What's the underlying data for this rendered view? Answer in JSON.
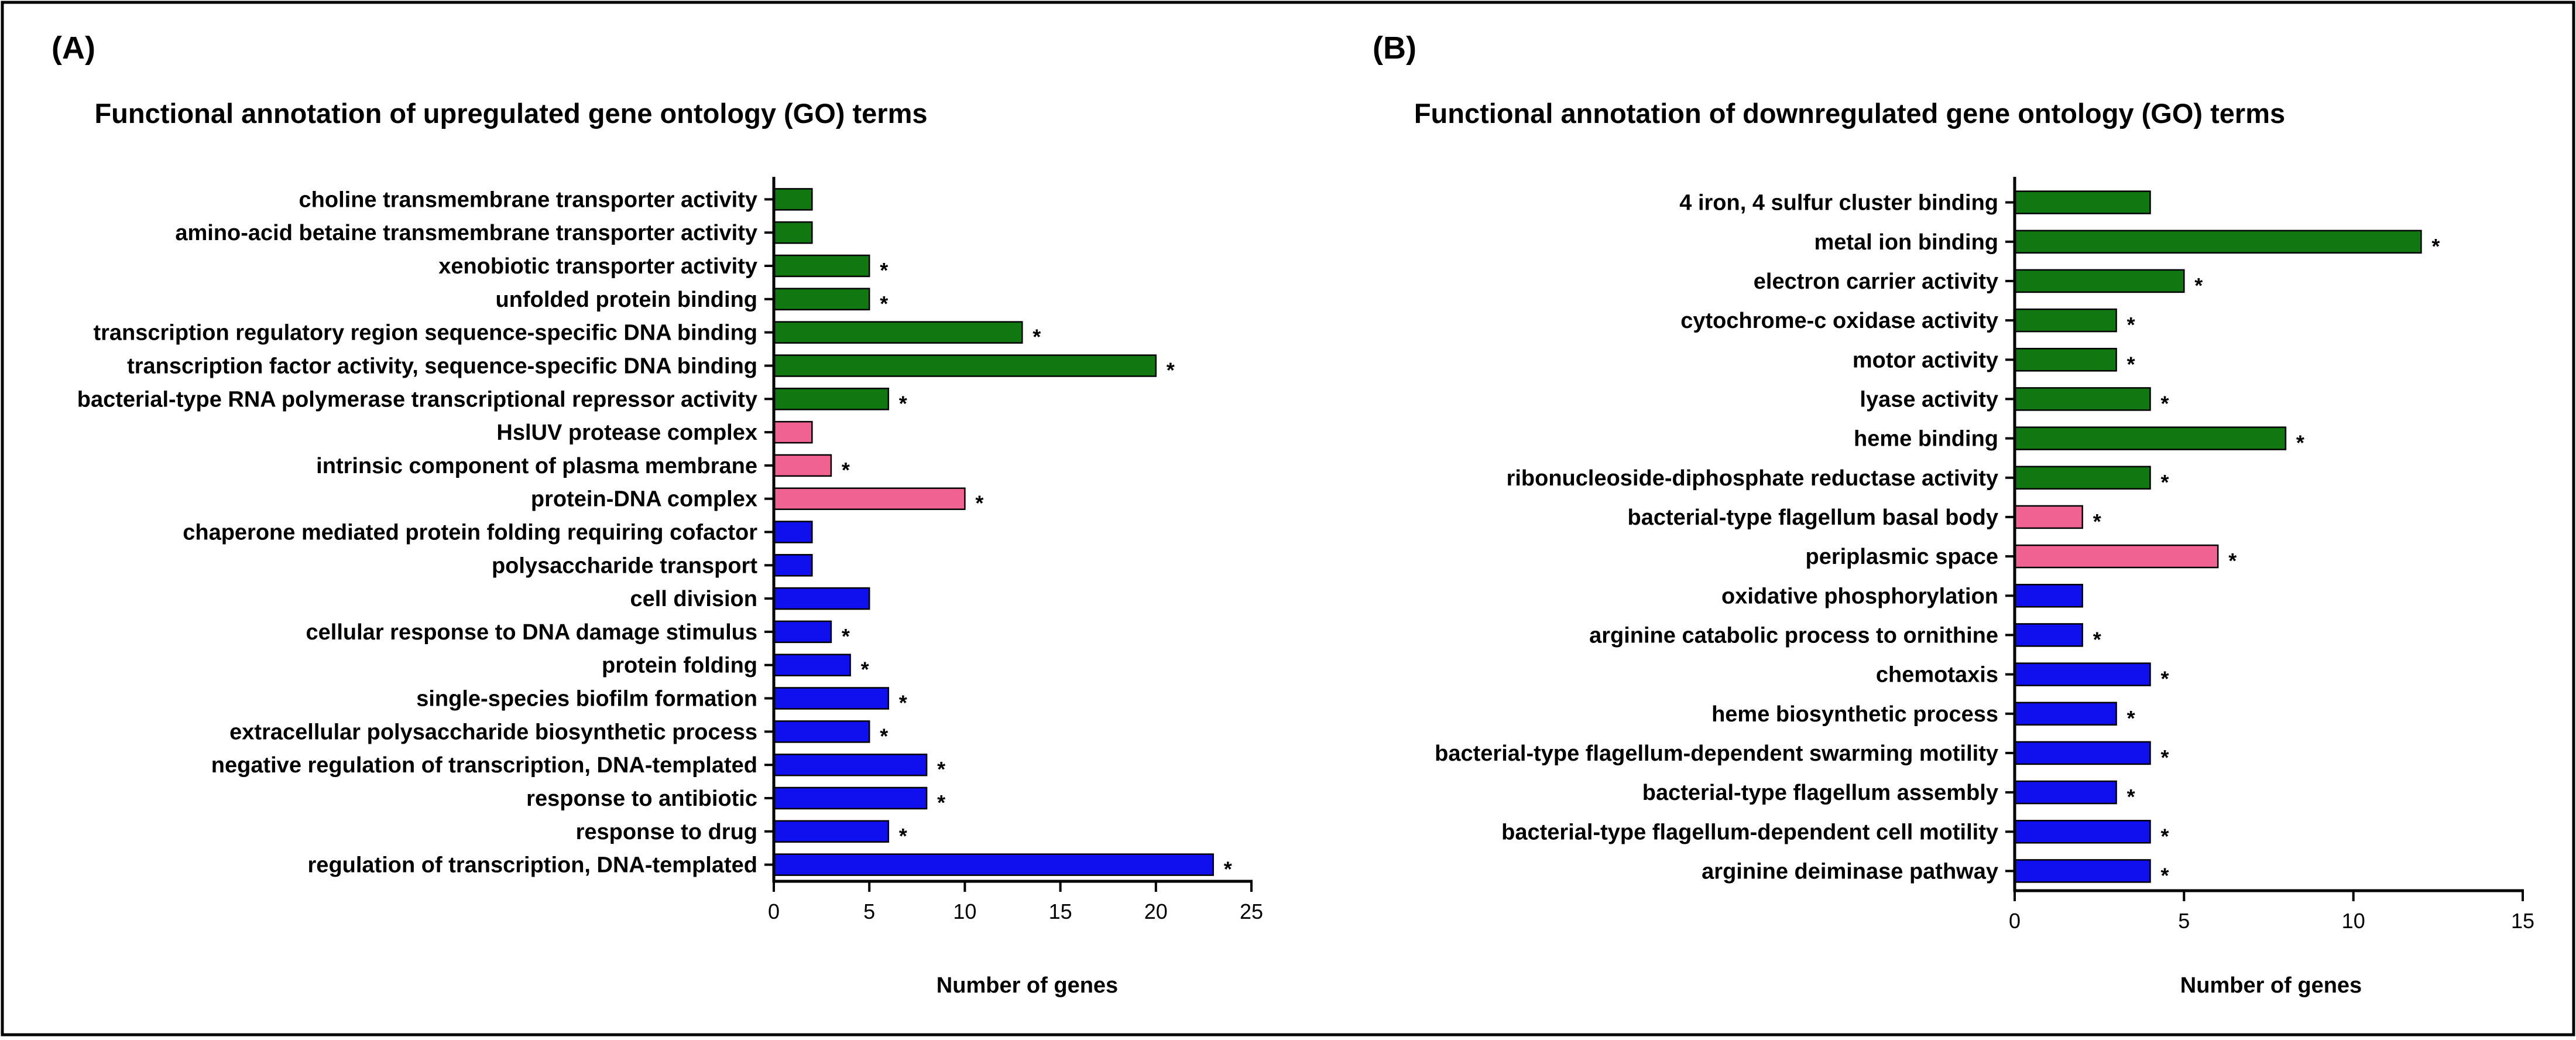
{
  "colors": {
    "function": "#117711",
    "component": "#f06292",
    "process": "#1010ee",
    "axis": "#000000",
    "border": "#000000"
  },
  "chart_data": [
    {
      "type": "bar",
      "orientation": "horizontal",
      "panel": "(A)",
      "title": "Functional annotation of upregulated gene ontology (GO) terms",
      "xlabel": "Number of genes",
      "ylabel": "",
      "xlim": [
        0,
        25
      ],
      "xticks": [
        "0",
        "5",
        "10",
        "15",
        "20",
        "25"
      ],
      "significance_marker": "*",
      "bars": [
        {
          "label": "choline transmembrane transporter activity",
          "value": 2,
          "category": "function",
          "significant": false
        },
        {
          "label": "amino-acid betaine transmembrane transporter activity",
          "value": 2,
          "category": "function",
          "significant": false
        },
        {
          "label": "xenobiotic transporter activity",
          "value": 5,
          "category": "function",
          "significant": true
        },
        {
          "label": "unfolded protein binding",
          "value": 5,
          "category": "function",
          "significant": true
        },
        {
          "label": "transcription regulatory region sequence-specific DNA binding",
          "value": 13,
          "category": "function",
          "significant": true
        },
        {
          "label": "transcription factor activity, sequence-specific DNA binding",
          "value": 20,
          "category": "function",
          "significant": true
        },
        {
          "label": "bacterial-type RNA polymerase transcriptional repressor activity",
          "value": 6,
          "category": "function",
          "significant": true
        },
        {
          "label": "HslUV protease complex",
          "value": 2,
          "category": "component",
          "significant": false
        },
        {
          "label": "intrinsic component of plasma membrane",
          "value": 3,
          "category": "component",
          "significant": true
        },
        {
          "label": "protein-DNA complex",
          "value": 10,
          "category": "component",
          "significant": true
        },
        {
          "label": "chaperone mediated protein folding requiring cofactor",
          "value": 2,
          "category": "process",
          "significant": false
        },
        {
          "label": "polysaccharide transport",
          "value": 2,
          "category": "process",
          "significant": false
        },
        {
          "label": "cell division",
          "value": 5,
          "category": "process",
          "significant": false
        },
        {
          "label": "cellular response to DNA damage stimulus",
          "value": 3,
          "category": "process",
          "significant": true
        },
        {
          "label": "protein folding",
          "value": 4,
          "category": "process",
          "significant": true
        },
        {
          "label": "single-species biofilm formation",
          "value": 6,
          "category": "process",
          "significant": true
        },
        {
          "label": "extracellular polysaccharide biosynthetic process",
          "value": 5,
          "category": "process",
          "significant": true
        },
        {
          "label": "negative regulation of transcription, DNA-templated",
          "value": 8,
          "category": "process",
          "significant": true
        },
        {
          "label": "response to antibiotic",
          "value": 8,
          "category": "process",
          "significant": true
        },
        {
          "label": "response to drug",
          "value": 6,
          "category": "process",
          "significant": true
        },
        {
          "label": "regulation of transcription, DNA-templated",
          "value": 23,
          "category": "process",
          "significant": true
        }
      ]
    },
    {
      "type": "bar",
      "orientation": "horizontal",
      "panel": "(B)",
      "title": "Functional annotation of downregulated gene ontology (GO) terms",
      "xlabel": "Number of genes",
      "ylabel": "",
      "xlim": [
        0,
        15
      ],
      "xticks": [
        "0",
        "5",
        "10",
        "15"
      ],
      "significance_marker": "*",
      "bars": [
        {
          "label": "4 iron, 4 sulfur cluster binding",
          "value": 4,
          "category": "function",
          "significant": false
        },
        {
          "label": "metal ion binding",
          "value": 12,
          "category": "function",
          "significant": true
        },
        {
          "label": "electron carrier activity",
          "value": 5,
          "category": "function",
          "significant": true
        },
        {
          "label": "cytochrome-c oxidase activity",
          "value": 3,
          "category": "function",
          "significant": true
        },
        {
          "label": "motor activity",
          "value": 3,
          "category": "function",
          "significant": true
        },
        {
          "label": "lyase activity",
          "value": 4,
          "category": "function",
          "significant": true
        },
        {
          "label": "heme binding",
          "value": 8,
          "category": "function",
          "significant": true
        },
        {
          "label": "ribonucleoside-diphosphate reductase activity",
          "value": 4,
          "category": "function",
          "significant": true
        },
        {
          "label": "bacterial-type flagellum basal body",
          "value": 2,
          "category": "component",
          "significant": true
        },
        {
          "label": "periplasmic space",
          "value": 6,
          "category": "component",
          "significant": true
        },
        {
          "label": "oxidative phosphorylation",
          "value": 2,
          "category": "process",
          "significant": false
        },
        {
          "label": "arginine catabolic process to ornithine",
          "value": 2,
          "category": "process",
          "significant": true
        },
        {
          "label": "chemotaxis",
          "value": 4,
          "category": "process",
          "significant": true
        },
        {
          "label": "heme biosynthetic process",
          "value": 3,
          "category": "process",
          "significant": true
        },
        {
          "label": "bacterial-type flagellum-dependent swarming motility",
          "value": 4,
          "category": "process",
          "significant": true
        },
        {
          "label": "bacterial-type flagellum assembly",
          "value": 3,
          "category": "process",
          "significant": true
        },
        {
          "label": "bacterial-type flagellum-dependent cell motility",
          "value": 4,
          "category": "process",
          "significant": true
        },
        {
          "label": "arginine deiminase pathway",
          "value": 4,
          "category": "process",
          "significant": true
        }
      ]
    }
  ]
}
